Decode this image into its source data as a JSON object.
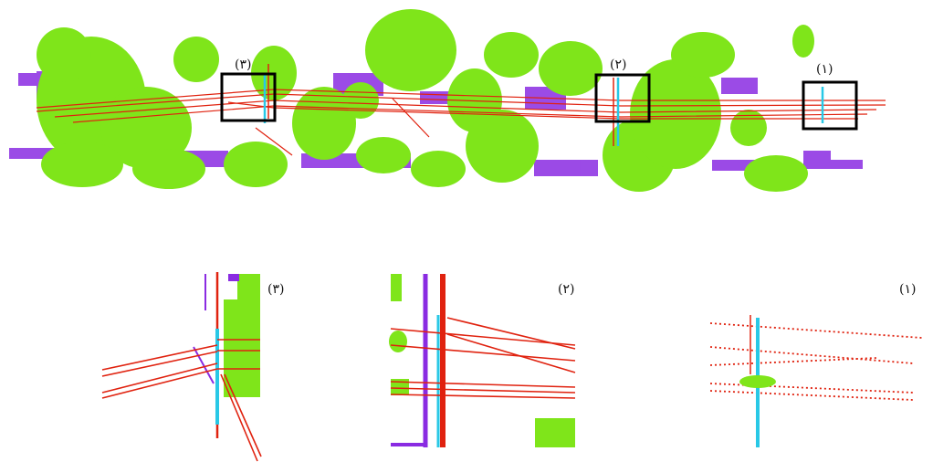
{
  "colors": {
    "vegetation": "#7fe51a",
    "building": "#8a2be2",
    "wire": "#e0220f",
    "pole": "#28c8e6",
    "frame": "#000000"
  },
  "overview": {
    "box_labels": [
      "(٣)",
      "(٢)",
      "(١)"
    ]
  },
  "details": [
    {
      "label": "(٣)"
    },
    {
      "label": "(٢)"
    },
    {
      "label": "(١)"
    }
  ]
}
